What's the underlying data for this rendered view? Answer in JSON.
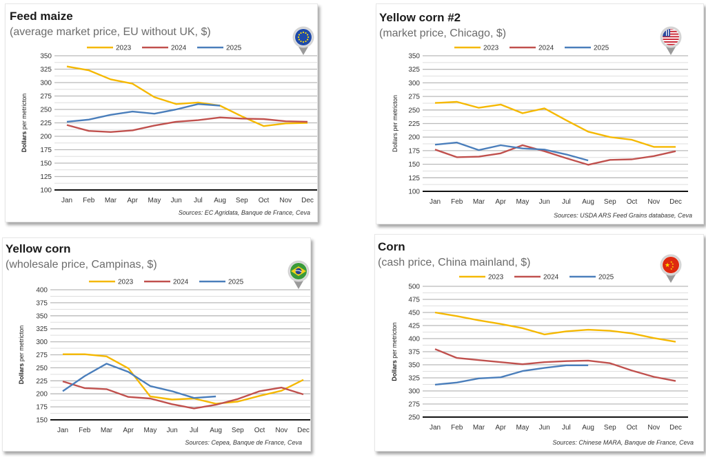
{
  "colors": {
    "s2023": "#f5b800",
    "s2024": "#c0504d",
    "s2025": "#4a7ebb"
  },
  "chart_data": [
    {
      "type": "line",
      "title": "Feed maize",
      "subtitle": "(average market price, EU without UK, $)",
      "flag": "eu-flag",
      "ylabel_bold": "Dollars",
      "ylabel_rest": " per metricton",
      "source": "Sources: EC Agridata, Banque de France, Ceva",
      "ylim": [
        100,
        350
      ],
      "yticks": [
        100,
        125,
        150,
        175,
        200,
        225,
        250,
        275,
        300,
        325,
        350
      ],
      "categories": [
        "Jan",
        "Feb",
        "Mar",
        "Apr",
        "May",
        "Jun",
        "Jul",
        "Aug",
        "Sep",
        "Oct",
        "Nov",
        "Dec"
      ],
      "legend": "top-center",
      "series": [
        {
          "name": "2023",
          "values": [
            330,
            323,
            306,
            298,
            273,
            260,
            263,
            257,
            237,
            219,
            224,
            225
          ]
        },
        {
          "name": "2024",
          "values": [
            221,
            210,
            208,
            211,
            220,
            227,
            230,
            235,
            233,
            232,
            228,
            227
          ]
        },
        {
          "name": "2025",
          "values": [
            227,
            231,
            240,
            246,
            242,
            250,
            260,
            257
          ]
        }
      ]
    },
    {
      "type": "line",
      "title": "Yellow corn #2",
      "subtitle": "(market price, Chicago, $)",
      "flag": "us-flag",
      "ylabel_bold": "",
      "ylabel_rest": "Dollars per metricton",
      "source": "Sources: USDA ARS Feed Grains database, Ceva",
      "ylim": [
        100,
        350
      ],
      "yticks": [
        100,
        125,
        150,
        175,
        200,
        225,
        250,
        275,
        300,
        325,
        350
      ],
      "categories": [
        "Jan",
        "Feb",
        "Mar",
        "Apr",
        "May",
        "Jun",
        "Jul",
        "Aug",
        "Sep",
        "Oct",
        "Nov",
        "Dec"
      ],
      "legend": "top-center",
      "series": [
        {
          "name": "2023",
          "values": [
            263,
            265,
            254,
            260,
            244,
            253,
            231,
            210,
            200,
            195,
            182,
            182
          ]
        },
        {
          "name": "2024",
          "values": [
            177,
            163,
            164,
            170,
            185,
            174,
            161,
            149,
            158,
            159,
            165,
            174
          ]
        },
        {
          "name": "2025",
          "values": [
            186,
            190,
            176,
            185,
            179,
            177,
            168,
            157
          ]
        }
      ]
    },
    {
      "type": "line",
      "title": "Yellow corn",
      "subtitle": "(wholesale price, Campinas, $)",
      "flag": "brazil-flag",
      "ylabel_bold": "Dollars",
      "ylabel_rest": " per metricton",
      "source": "Sources: Cepea, Banque de France, Ceva",
      "ylim": [
        150,
        400
      ],
      "yticks": [
        150,
        175,
        200,
        225,
        250,
        275,
        300,
        325,
        350,
        375,
        400
      ],
      "categories": [
        "Jan",
        "Feb",
        "Mar",
        "Apr",
        "May",
        "Jun",
        "Jul",
        "Aug",
        "Sep",
        "Oct",
        "Nov",
        "Dec"
      ],
      "legend": "top-center",
      "series": [
        {
          "name": "2023",
          "values": [
            276,
            276,
            272,
            249,
            195,
            189,
            191,
            181,
            185,
            196,
            206,
            227
          ]
        },
        {
          "name": "2024",
          "values": [
            224,
            211,
            209,
            194,
            191,
            180,
            172,
            179,
            190,
            205,
            212,
            199
          ]
        },
        {
          "name": "2025",
          "values": [
            205,
            234,
            258,
            242,
            215,
            205,
            192,
            195
          ]
        }
      ]
    },
    {
      "type": "line",
      "title": "Corn",
      "subtitle": "(cash price, China mainland, $)",
      "flag": "china-flag",
      "ylabel_bold": "Dollars",
      "ylabel_rest": " per metricton",
      "source": "Sources: Chinese MARA, Banque de France, Ceva",
      "ylim": [
        250,
        500
      ],
      "yticks": [
        250,
        275,
        300,
        325,
        350,
        375,
        400,
        425,
        450,
        475,
        500
      ],
      "categories": [
        "Jan",
        "Feb",
        "Mar",
        "Apr",
        "May",
        "Jun",
        "Jul",
        "Aug",
        "Sep",
        "Oct",
        "Nov",
        "Dec"
      ],
      "legend": "top-center",
      "series": [
        {
          "name": "2023",
          "values": [
            450,
            443,
            435,
            428,
            420,
            408,
            414,
            417,
            415,
            410,
            401,
            394
          ]
        },
        {
          "name": "2024",
          "values": [
            380,
            363,
            359,
            355,
            351,
            355,
            357,
            358,
            353,
            339,
            327,
            319
          ]
        },
        {
          "name": "2025",
          "values": [
            312,
            316,
            324,
            326,
            338,
            344,
            349,
            349
          ]
        }
      ]
    }
  ]
}
